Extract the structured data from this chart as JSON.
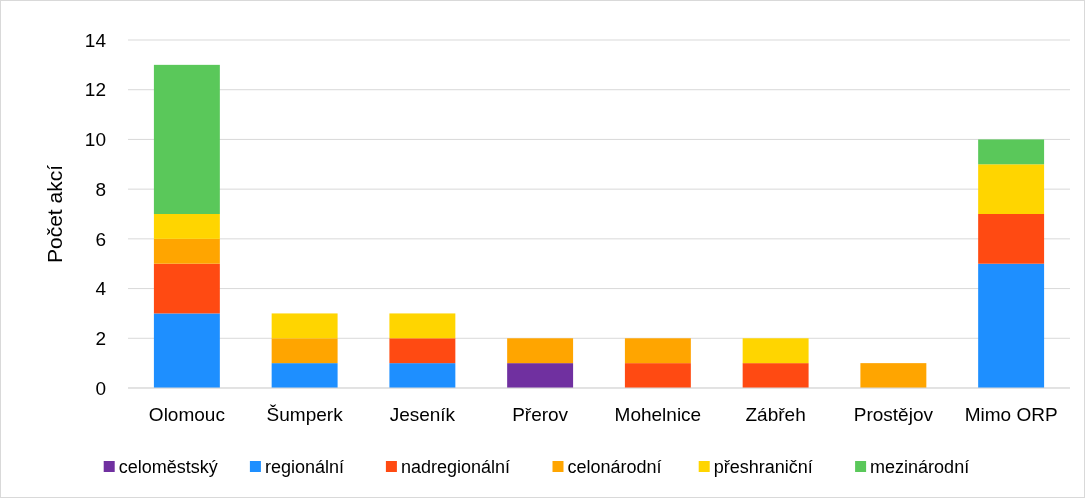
{
  "chart_data": {
    "type": "bar",
    "stacked": true,
    "ylabel": "Počet akcí",
    "categories": [
      "Olomouc",
      "Šumperk",
      "Jeseník",
      "Přerov",
      "Mohelnice",
      "Zábřeh",
      "Prostějov",
      "Mimo ORP"
    ],
    "series": [
      {
        "name": "celoměstský",
        "color": "#7030a0",
        "values": [
          null,
          null,
          null,
          1,
          null,
          null,
          null,
          null
        ]
      },
      {
        "name": "regionální",
        "color": "#1e8fff",
        "values": [
          3,
          1,
          1,
          null,
          null,
          null,
          null,
          5
        ]
      },
      {
        "name": "nadregionální",
        "color": "#ff4a12",
        "values": [
          2,
          null,
          1,
          null,
          1,
          1,
          null,
          2
        ]
      },
      {
        "name": "celonárodní",
        "color": "#ffa500",
        "values": [
          1,
          1,
          null,
          1,
          1,
          null,
          1,
          null
        ]
      },
      {
        "name": "přeshraniční",
        "color": "#ffd500",
        "values": [
          1,
          1,
          1,
          null,
          null,
          1,
          null,
          2
        ]
      },
      {
        "name": "mezinárodní",
        "color": "#5ac85a",
        "values": [
          6,
          null,
          null,
          null,
          null,
          null,
          null,
          1
        ]
      }
    ],
    "ylim": [
      0,
      14
    ],
    "yticks": [
      0,
      2,
      4,
      6,
      8,
      10,
      12,
      14
    ],
    "grid": "y",
    "legend": "bottom"
  }
}
